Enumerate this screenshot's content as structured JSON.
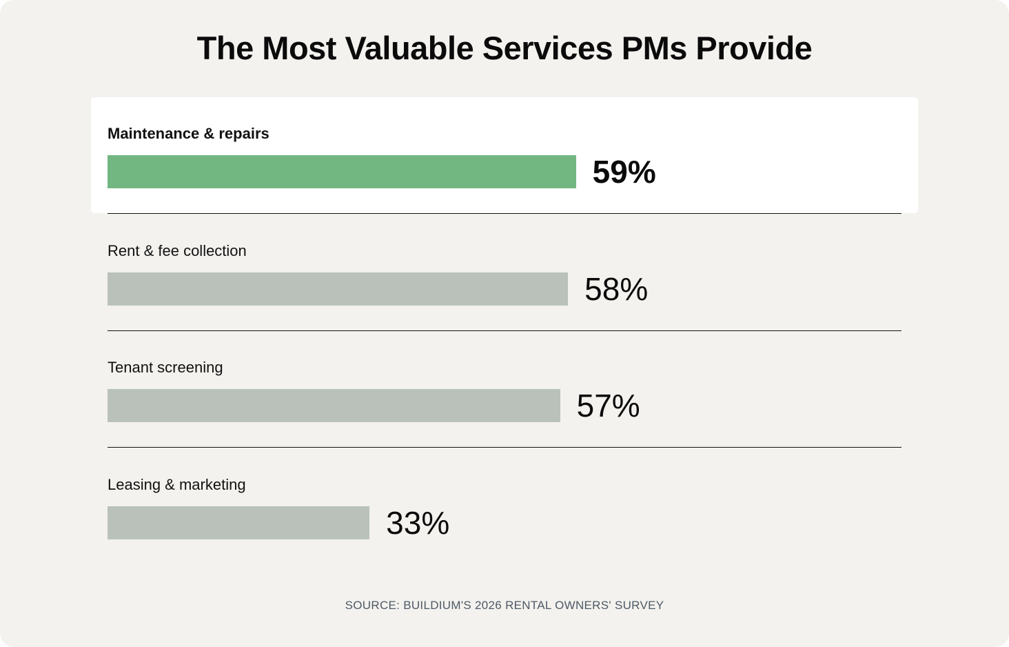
{
  "chart_data": {
    "type": "bar",
    "orientation": "horizontal",
    "title": "The Most Valuable Services PMs Provide",
    "categories": [
      "Maintenance & repairs",
      "Rent & fee collection",
      "Tenant screening",
      "Leasing & marketing"
    ],
    "values": [
      59,
      58,
      57,
      33
    ],
    "value_labels": [
      "59%",
      "58%",
      "57%",
      "33%"
    ],
    "highlighted_index": 0,
    "xlim": [
      0,
      100
    ],
    "grid": false,
    "legend": "none",
    "source": "SOURCE: BUILDIUM'S 2026 RENTAL OWNERS' SURVEY"
  },
  "colors": {
    "background": "#f3f2ee",
    "highlight_panel": "#ffffff",
    "highlight_bar": "#72b782",
    "default_bar": "#bac1ba",
    "text": "#0b0b0b",
    "source_text": "#4e5966"
  }
}
